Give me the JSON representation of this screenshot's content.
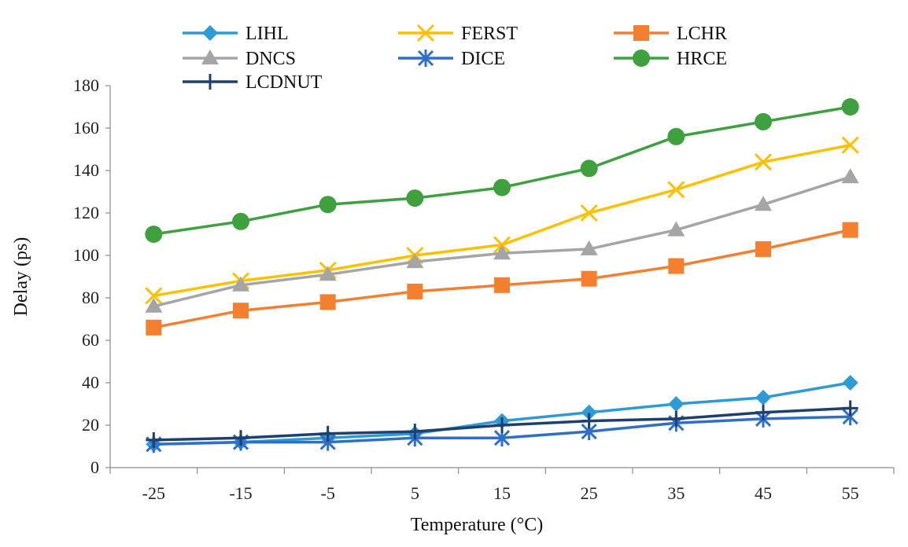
{
  "chart_data": {
    "type": "line",
    "title": "",
    "xlabel": "Temperature (°C)",
    "ylabel": "Delay (ps)",
    "x": [
      -25,
      -15,
      -5,
      5,
      15,
      25,
      35,
      45,
      55
    ],
    "x_tick_labels": [
      "-25",
      "-15",
      "-5",
      "5",
      "15",
      "25",
      "35",
      "45",
      "55"
    ],
    "y_ticks": [
      0,
      20,
      40,
      60,
      80,
      100,
      120,
      140,
      160,
      180
    ],
    "y_tick_labels": [
      "0",
      "20",
      "40",
      "60",
      "80",
      "100",
      "120",
      "140",
      "160",
      "180"
    ],
    "ylim": [
      0,
      180
    ],
    "grid": false,
    "legend_position": "top",
    "series": [
      {
        "name": "LIHL",
        "marker": "diamond",
        "color": "#2E9BD6",
        "values": [
          11,
          12,
          14,
          16,
          22,
          26,
          30,
          33,
          40
        ]
      },
      {
        "name": "FERST",
        "marker": "x",
        "color": "#FFC000",
        "values": [
          81,
          88,
          93,
          100,
          105,
          120,
          131,
          144,
          152
        ]
      },
      {
        "name": "LCHR",
        "marker": "square",
        "color": "#F47F2E",
        "values": [
          66,
          74,
          78,
          83,
          86,
          89,
          95,
          103,
          112
        ]
      },
      {
        "name": "DNCS",
        "marker": "triangle",
        "color": "#A5A5A5",
        "values": [
          76,
          86,
          91,
          97,
          101,
          103,
          112,
          124,
          137
        ]
      },
      {
        "name": "DICE",
        "marker": "asterisk",
        "color": "#2F6FC8",
        "values": [
          11,
          12,
          12,
          14,
          14,
          17,
          21,
          23,
          24
        ]
      },
      {
        "name": "HRCE",
        "marker": "circle",
        "color": "#3EA03E",
        "values": [
          110,
          116,
          124,
          127,
          132,
          141,
          156,
          163,
          170
        ]
      },
      {
        "name": "LCDNUT",
        "marker": "plus",
        "color": "#1F3F6E",
        "values": [
          13,
          14,
          16,
          17,
          20,
          22,
          23,
          26,
          28
        ]
      }
    ]
  }
}
